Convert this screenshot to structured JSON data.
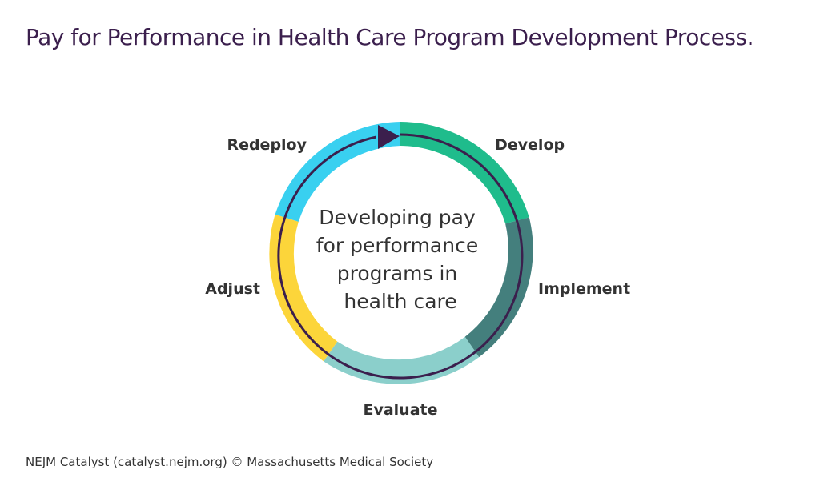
{
  "title": "Pay for Performance in Health Care Program Development Process.",
  "diagram": {
    "center_lines": [
      "Developing pay",
      "for performance",
      "programs in",
      "health care"
    ],
    "stages": [
      {
        "id": "develop",
        "label": "Develop",
        "color": "#1fbc8c"
      },
      {
        "id": "implement",
        "label": "Implement",
        "color": "#447f7d"
      },
      {
        "id": "evaluate",
        "label": "Evaluate",
        "color": "#8bcfcb"
      },
      {
        "id": "adjust",
        "label": "Adjust",
        "color": "#fcd53a"
      },
      {
        "id": "redeploy",
        "label": "Redeploy",
        "color": "#39d0f0"
      }
    ],
    "arrow_color": "#3b1f4d"
  },
  "footer": "NEJM Catalyst (catalyst.nejm.org) © Massachusetts Medical Society"
}
